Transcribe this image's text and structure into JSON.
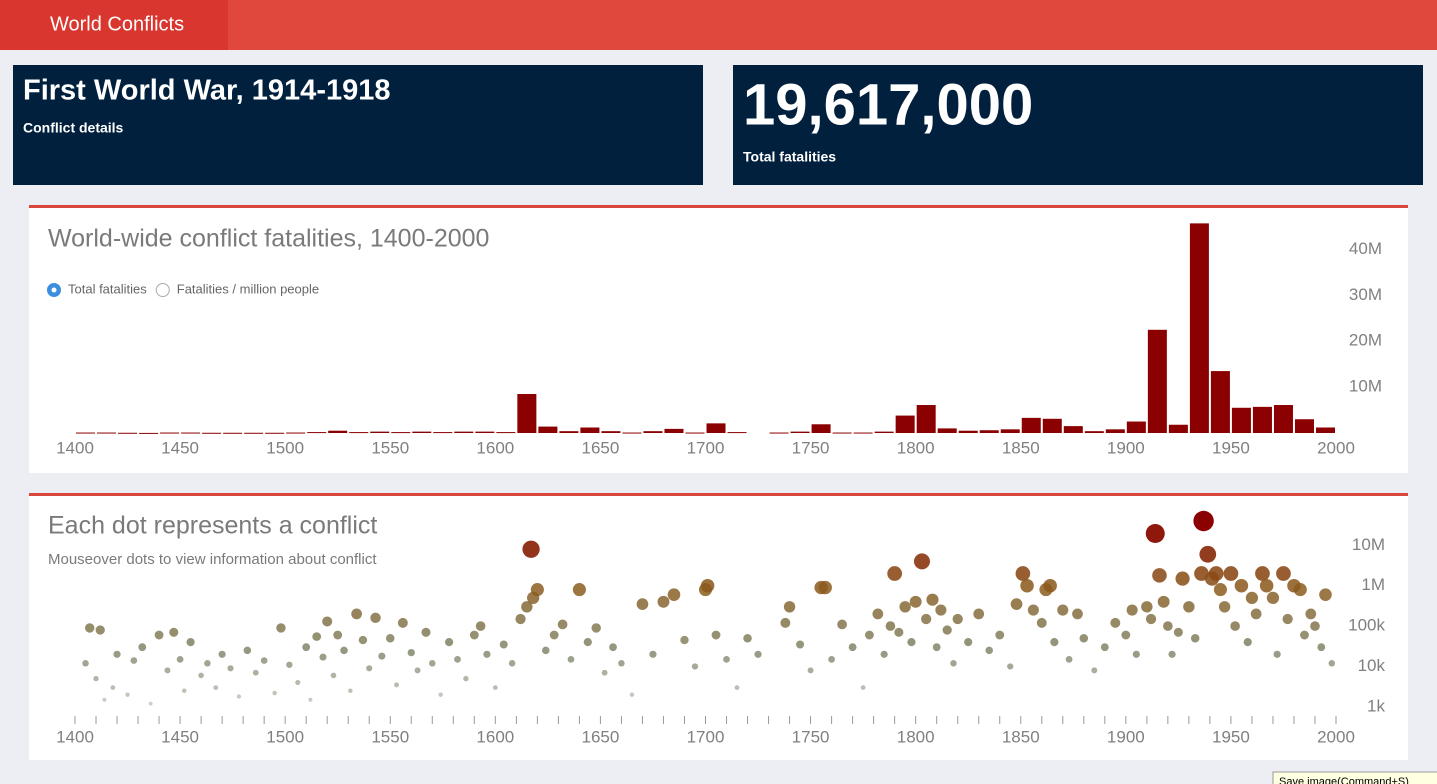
{
  "header": {
    "title": "World Conflicts"
  },
  "cards": [
    {
      "value": "First World War, 1914-1918",
      "label": "Conflict details"
    },
    {
      "value": "19,617,000",
      "label": "Total fatalities"
    }
  ],
  "controls": {
    "options": [
      {
        "label": "Total fatalities",
        "selected": true
      },
      {
        "label": "Fatalities / million people",
        "selected": false
      }
    ]
  },
  "tooltip": "Save image(Command+S)",
  "chart_data": [
    {
      "type": "histogram",
      "title": "World-wide conflict fatalities, 1400-2000",
      "color": "#8b0000",
      "bins": [
        1400,
        1410,
        1420,
        1430,
        1440,
        1450,
        1460,
        1470,
        1480,
        1490,
        1500,
        1510,
        1520,
        1530,
        1540,
        1550,
        1560,
        1570,
        1580,
        1590,
        1600,
        1610,
        1620,
        1630,
        1640,
        1650,
        1660,
        1670,
        1680,
        1690,
        1700,
        1710,
        1720,
        1730,
        1740,
        1750,
        1760,
        1770,
        1780,
        1790,
        1800,
        1810,
        1820,
        1830,
        1840,
        1850,
        1860,
        1870,
        1880,
        1890,
        1900,
        1910,
        1920,
        1930,
        1940,
        1950,
        1960,
        1970,
        1980,
        1990,
        2000
      ],
      "values": [
        100000,
        100000,
        50000,
        20000,
        100000,
        100000,
        50000,
        50000,
        50000,
        50000,
        100000,
        200000,
        500000,
        200000,
        300000,
        200000,
        300000,
        200000,
        300000,
        300000,
        200000,
        8500000,
        1400000,
        400000,
        1200000,
        400000,
        100000,
        400000,
        900000,
        100000,
        2100000,
        200000,
        0,
        100000,
        300000,
        1900000,
        100000,
        100000,
        300000,
        3800000,
        6100000,
        1000000,
        500000,
        600000,
        800000,
        3300000,
        3100000,
        1500000,
        400000,
        800000,
        2500000,
        22500000,
        1800000,
        45700000,
        13500000,
        5500000,
        5700000,
        6100000,
        3000000,
        1200000
      ],
      "xlim": [
        1400,
        2000
      ],
      "xticks": [
        1400,
        1450,
        1500,
        1550,
        1600,
        1650,
        1700,
        1750,
        1800,
        1850,
        1900,
        1950,
        2000
      ],
      "ylim": [
        0,
        46000000
      ],
      "yticks": [
        {
          "value": 10000000,
          "label": "10M"
        },
        {
          "value": 20000000,
          "label": "20M"
        },
        {
          "value": 30000000,
          "label": "30M"
        },
        {
          "value": 40000000,
          "label": "40M"
        }
      ]
    },
    {
      "type": "scatter",
      "title": "Each dot represents a conflict",
      "subtitle": "Mouseover dots to view information about conflict",
      "colors": [
        "#b9bdb5",
        "#66704f",
        "#8a5a1c",
        "#8b0000"
      ],
      "ylog": true,
      "x": [
        1405,
        1407,
        1410,
        1412,
        1414,
        1418,
        1420,
        1425,
        1428,
        1432,
        1436,
        1440,
        1444,
        1447,
        1450,
        1452,
        1455,
        1460,
        1463,
        1467,
        1470,
        1474,
        1478,
        1482,
        1486,
        1490,
        1495,
        1498,
        1502,
        1506,
        1510,
        1512,
        1515,
        1518,
        1520,
        1523,
        1525,
        1528,
        1531,
        1534,
        1537,
        1540,
        1543,
        1546,
        1550,
        1553,
        1556,
        1560,
        1563,
        1567,
        1570,
        1574,
        1578,
        1582,
        1586,
        1590,
        1593,
        1596,
        1600,
        1604,
        1608,
        1612,
        1615,
        1617,
        1618,
        1620,
        1624,
        1628,
        1632,
        1636,
        1640,
        1644,
        1648,
        1652,
        1656,
        1660,
        1665,
        1670,
        1675,
        1680,
        1685,
        1690,
        1695,
        1700,
        1701,
        1705,
        1710,
        1715,
        1720,
        1725,
        1738,
        1740,
        1745,
        1750,
        1755,
        1757,
        1760,
        1765,
        1770,
        1775,
        1778,
        1782,
        1785,
        1788,
        1790,
        1792,
        1795,
        1798,
        1800,
        1803,
        1805,
        1808,
        1810,
        1812,
        1815,
        1818,
        1820,
        1825,
        1830,
        1835,
        1840,
        1845,
        1848,
        1851,
        1853,
        1856,
        1860,
        1862,
        1864,
        1866,
        1870,
        1873,
        1877,
        1880,
        1885,
        1890,
        1895,
        1900,
        1903,
        1905,
        1910,
        1912,
        1914,
        1916,
        1918,
        1920,
        1922,
        1925,
        1927,
        1930,
        1933,
        1936,
        1937,
        1939,
        1941,
        1943,
        1945,
        1947,
        1950,
        1952,
        1955,
        1958,
        1960,
        1962,
        1965,
        1967,
        1970,
        1972,
        1975,
        1977,
        1980,
        1983,
        1985,
        1988,
        1990,
        1993,
        1995,
        1998
      ],
      "values": [
        12000,
        90000,
        5000,
        80000,
        1500,
        3000,
        20000,
        2000,
        14000,
        30000,
        1200,
        60000,
        8000,
        70000,
        15000,
        2500,
        40000,
        6000,
        12000,
        3000,
        20000,
        9000,
        1800,
        25000,
        7000,
        14000,
        2200,
        90000,
        11000,
        4000,
        30000,
        1500,
        55000,
        17000,
        130000,
        6000,
        60000,
        25000,
        2500,
        200000,
        45000,
        9000,
        160000,
        18000,
        50000,
        3500,
        120000,
        22000,
        8000,
        70000,
        12000,
        2000,
        40000,
        15000,
        5000,
        60000,
        100000,
        20000,
        3000,
        35000,
        12000,
        150000,
        300000,
        8000000,
        500000,
        800000,
        25000,
        60000,
        110000,
        15000,
        800000,
        40000,
        90000,
        7000,
        30000,
        12000,
        2000,
        350000,
        20000,
        400000,
        600000,
        45000,
        10000,
        800000,
        1000000,
        60000,
        15000,
        3000,
        50000,
        20000,
        120000,
        300000,
        35000,
        8000,
        900000,
        900000,
        15000,
        110000,
        30000,
        3000,
        60000,
        200000,
        20000,
        100000,
        2000000,
        70000,
        300000,
        40000,
        400000,
        4000000,
        150000,
        450000,
        30000,
        250000,
        80000,
        12000,
        150000,
        40000,
        200000,
        25000,
        60000,
        10000,
        350000,
        2000000,
        1000000,
        250000,
        120000,
        800000,
        1000000,
        40000,
        250000,
        15000,
        200000,
        50000,
        8000,
        30000,
        120000,
        60000,
        250000,
        20000,
        300000,
        150000,
        19617000,
        1800000,
        400000,
        100000,
        20000,
        70000,
        1500000,
        300000,
        50000,
        2000000,
        40000000,
        6000000,
        1500000,
        2000000,
        800000,
        300000,
        2000000,
        100000,
        1000000,
        40000,
        500000,
        200000,
        2000000,
        1000000,
        500000,
        20000,
        2000000,
        150000,
        1000000,
        800000,
        60000,
        200000,
        100000,
        30000,
        600000,
        12000
      ],
      "xlim": [
        1400,
        2000
      ],
      "xticks": [
        1400,
        1450,
        1500,
        1550,
        1600,
        1650,
        1700,
        1750,
        1800,
        1850,
        1900,
        1950,
        2000
      ],
      "xminorticks": [
        1400,
        1410,
        1420,
        1430,
        1440,
        1450,
        1460,
        1470,
        1480,
        1490,
        1500,
        1510,
        1520,
        1530,
        1540,
        1550,
        1560,
        1570,
        1580,
        1590,
        1600,
        1610,
        1620,
        1630,
        1640,
        1650,
        1660,
        1670,
        1680,
        1690,
        1700,
        1710,
        1720,
        1730,
        1740,
        1750,
        1760,
        1770,
        1780,
        1790,
        1800,
        1810,
        1820,
        1830,
        1840,
        1850,
        1860,
        1870,
        1880,
        1890,
        1900,
        1910,
        1920,
        1930,
        1940,
        1950,
        1960,
        1970,
        1980,
        1990,
        2000
      ],
      "ylim": [
        500,
        40000000
      ],
      "yticks": [
        {
          "value": 1000,
          "label": "1k"
        },
        {
          "value": 10000,
          "label": "10k"
        },
        {
          "value": 100000,
          "label": "100k"
        },
        {
          "value": 1000000,
          "label": "1M"
        },
        {
          "value": 10000000,
          "label": "10M"
        }
      ]
    }
  ]
}
